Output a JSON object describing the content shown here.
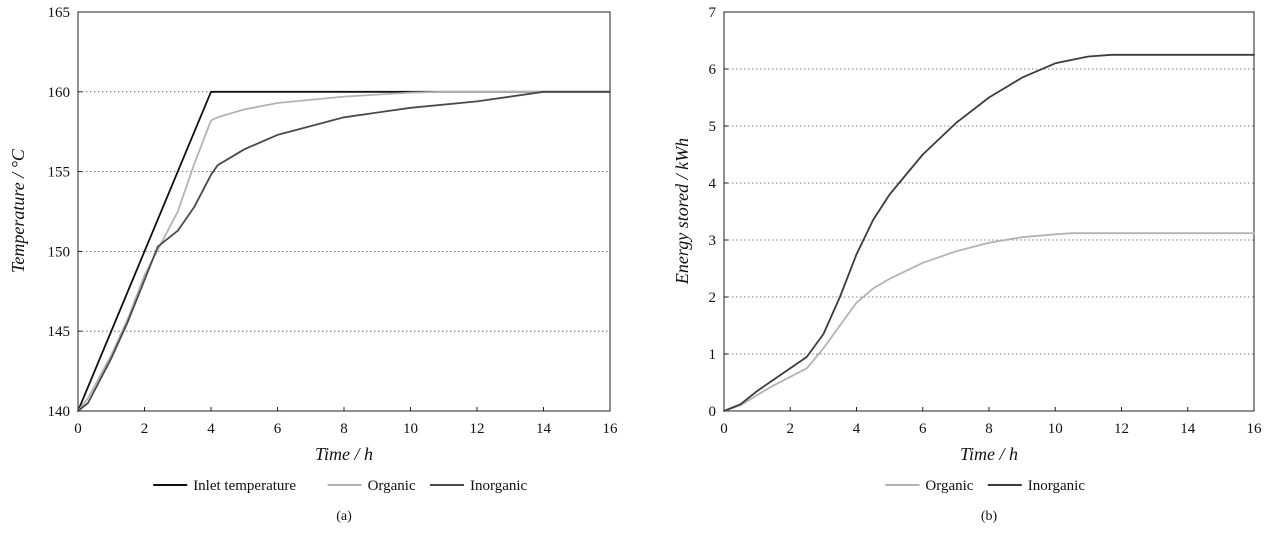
{
  "chart_data": [
    {
      "type": "line",
      "panel_label": "(a)",
      "xlabel": "Time / h",
      "ylabel": "Temperature / °C",
      "xlim": [
        0,
        16
      ],
      "ylim": [
        140,
        165
      ],
      "xticks": [
        "0",
        "2",
        "4",
        "6",
        "8",
        "10",
        "12",
        "14",
        "16"
      ],
      "yticks": [
        "140",
        "145",
        "150",
        "155",
        "160",
        "165"
      ],
      "grid": "horizontal dotted",
      "legend_position": "bottom",
      "series": [
        {
          "name": "Inlet temperature",
          "color": "#111111",
          "x": [
            0,
            4,
            16
          ],
          "y": [
            140,
            160,
            160
          ]
        },
        {
          "name": "Organic",
          "color": "#b3b3b3",
          "x": [
            0,
            0.3,
            1,
            1.5,
            2,
            2.5,
            3,
            3.5,
            4,
            4.2,
            5,
            6,
            8,
            10,
            11,
            16
          ],
          "y": [
            140,
            140.8,
            143.5,
            145.8,
            148.5,
            150.5,
            152.5,
            155.5,
            158.2,
            158.4,
            158.9,
            159.3,
            159.7,
            159.95,
            160,
            160
          ]
        },
        {
          "name": "Inorganic",
          "color": "#4a4a4a",
          "x": [
            0,
            0.3,
            1,
            1.5,
            2,
            2.4,
            3,
            3.5,
            4,
            4.2,
            5,
            6,
            8,
            10,
            12,
            14,
            16
          ],
          "y": [
            140,
            140.5,
            143.3,
            145.6,
            148.2,
            150.3,
            151.3,
            152.8,
            154.8,
            155.4,
            156.4,
            157.3,
            158.4,
            159.0,
            159.4,
            160,
            160
          ]
        }
      ]
    },
    {
      "type": "line",
      "panel_label": "(b)",
      "xlabel": "Time / h",
      "ylabel": "Energy stored / kWh",
      "xlim": [
        0,
        16
      ],
      "ylim": [
        0,
        7
      ],
      "xticks": [
        "0",
        "2",
        "4",
        "6",
        "8",
        "10",
        "12",
        "14",
        "16"
      ],
      "yticks": [
        "0",
        "1",
        "2",
        "3",
        "4",
        "5",
        "6",
        "7"
      ],
      "grid": "horizontal dotted",
      "legend_position": "bottom",
      "series": [
        {
          "name": "Organic",
          "color": "#b3b3b3",
          "x": [
            0,
            0.5,
            1,
            1.5,
            2,
            2.5,
            3,
            3.5,
            4,
            4.5,
            5,
            6,
            7,
            8,
            9,
            10,
            10.5,
            16
          ],
          "y": [
            0,
            0.1,
            0.28,
            0.45,
            0.6,
            0.75,
            1.1,
            1.5,
            1.9,
            2.15,
            2.32,
            2.6,
            2.8,
            2.95,
            3.05,
            3.1,
            3.12,
            3.12
          ]
        },
        {
          "name": "Inorganic",
          "color": "#3c3c3c",
          "x": [
            0,
            0.5,
            1,
            1.5,
            2,
            2.5,
            3,
            3.5,
            4,
            4.5,
            5,
            6,
            7,
            8,
            9,
            10,
            11,
            11.7,
            16
          ],
          "y": [
            0,
            0.12,
            0.35,
            0.55,
            0.75,
            0.95,
            1.35,
            2.0,
            2.75,
            3.35,
            3.8,
            4.5,
            5.05,
            5.5,
            5.85,
            6.1,
            6.22,
            6.25,
            6.25
          ]
        }
      ]
    }
  ]
}
